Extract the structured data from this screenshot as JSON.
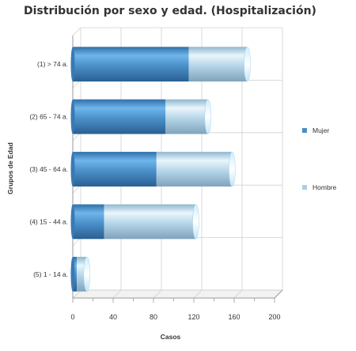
{
  "chart_data": {
    "type": "bar",
    "orientation": "horizontal",
    "stacked": true,
    "style": "3d-cylinder",
    "title": "Distribución por sexo y edad. (Hospitalización)",
    "xlabel": "Casos",
    "ylabel": "Grupos de Edad",
    "categories": [
      "(1) > 74 a.",
      "(2) 65 - 74 a.",
      "(3) 45 - 64 a.",
      "(4) 15 - 44 a.",
      "(5) 1 - 14 a."
    ],
    "series": [
      {
        "name": "Mujer",
        "color": "#4a90c8",
        "values": [
          115,
          92,
          83,
          31,
          4
        ]
      },
      {
        "name": "Hombre",
        "color": "#a9cfe8",
        "values": [
          58,
          42,
          75,
          91,
          10
        ]
      }
    ],
    "xlim": [
      0,
      200
    ],
    "xticks": [
      "0",
      "40",
      "80",
      "120",
      "160",
      "200"
    ],
    "grid": true,
    "legend_position": "right"
  }
}
